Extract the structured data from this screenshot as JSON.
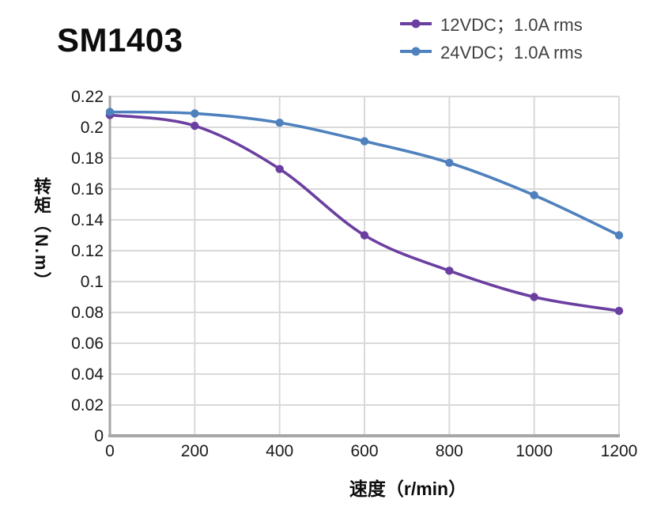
{
  "header": {
    "title": "SM1403"
  },
  "chart_data": {
    "type": "line",
    "title": "SM1403",
    "x": [
      0,
      200,
      400,
      600,
      800,
      1000,
      1200
    ],
    "series": [
      {
        "name": "12VDC；1.0A rms",
        "color": "#6B3FA0",
        "values": [
          0.208,
          0.201,
          0.173,
          0.13,
          0.107,
          0.09,
          0.081
        ]
      },
      {
        "name": "24VDC；1.0A rms",
        "color": "#4E81BD",
        "values": [
          0.21,
          0.209,
          0.203,
          0.191,
          0.177,
          0.156,
          0.13
        ]
      }
    ],
    "xlabel": "速度（r/min）",
    "ylabel": "转矩（N.m）",
    "xlim": [
      0,
      1200
    ],
    "ylim": [
      0,
      0.22
    ],
    "x_tick_step": 200,
    "y_tick_step": 0.02,
    "x_ticks": [
      "0",
      "200",
      "400",
      "600",
      "800",
      "1000",
      "1200"
    ],
    "y_ticks": [
      "0",
      "0.02",
      "0.04",
      "0.06",
      "0.08",
      "0.1",
      "0.12",
      "0.14",
      "0.16",
      "0.18",
      "0.2",
      "0.22"
    ],
    "grid": true,
    "smooth": true,
    "legend_position": "top-right",
    "colors": {
      "grid": "#D9D9D9",
      "axis": "#A6A6A6",
      "tick_text": "#1A1A1A",
      "legend_text": "#3F3F3F"
    }
  }
}
